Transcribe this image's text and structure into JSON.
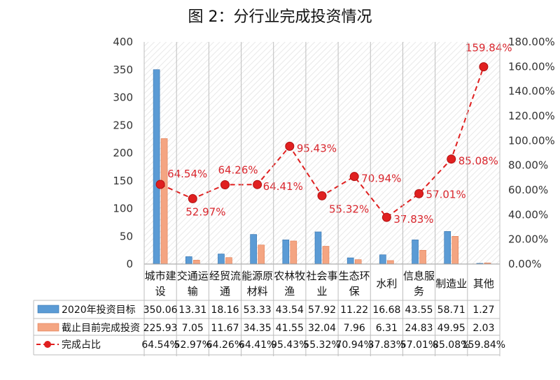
{
  "title": "图 2：分行业完成投资情况",
  "chart_data": {
    "type": "bar",
    "categories": [
      [
        "城市建",
        "设"
      ],
      [
        "交通运",
        "输"
      ],
      [
        "经贸流",
        "通"
      ],
      [
        "能源原",
        "材料"
      ],
      [
        "农林牧",
        "渔"
      ],
      [
        "社会事",
        "业"
      ],
      [
        "生态环",
        "保"
      ],
      [
        "水利"
      ],
      [
        "信息服",
        "务"
      ],
      [
        "制造业"
      ],
      [
        "其他"
      ]
    ],
    "series": [
      {
        "name": "2020年投资目标",
        "kind": "bar",
        "axis": "left",
        "color": "#5b9bd5",
        "values": [
          350.06,
          13.31,
          18.16,
          53.33,
          43.54,
          57.92,
          11.22,
          16.68,
          43.55,
          58.71,
          1.27
        ],
        "labels": [
          "350.06",
          "13.31",
          "18.16",
          "53.33",
          "43.54",
          "57.92",
          "11.22",
          "16.68",
          "43.55",
          "58.71",
          "1.27"
        ]
      },
      {
        "name": "截止目前完成投资",
        "kind": "bar",
        "axis": "left",
        "color": "#f4a582",
        "values": [
          225.93,
          7.05,
          11.67,
          34.35,
          41.55,
          32.04,
          7.96,
          6.31,
          24.83,
          49.95,
          2.03
        ],
        "labels": [
          "225.93",
          "7.05",
          "11.67",
          "34.35",
          "41.55",
          "32.04",
          "7.96",
          "6.31",
          "24.83",
          "49.95",
          "2.03"
        ]
      },
      {
        "name": "完成占比",
        "kind": "line",
        "axis": "right",
        "color": "#e02020",
        "values": [
          64.54,
          52.97,
          64.26,
          64.41,
          95.43,
          55.32,
          70.94,
          37.83,
          57.01,
          85.08,
          159.84
        ],
        "labels": [
          "64.54%",
          "52.97%",
          "64.26%",
          "64.41%",
          "95.43%",
          "55.32%",
          "70.94%",
          "37.83%",
          "57.01%",
          "85.08%",
          "159.84%"
        ]
      }
    ],
    "left_axis": {
      "min": 0,
      "max": 400,
      "ticks": [
        "0",
        "50",
        "100",
        "150",
        "200",
        "250",
        "300",
        "350",
        "400"
      ]
    },
    "right_axis": {
      "min": 0,
      "max": 180,
      "ticks": [
        "0.00%",
        "20.00%",
        "40.00%",
        "60.00%",
        "80.00%",
        "100.00%",
        "120.00%",
        "140.00%",
        "160.00%",
        "180.00%"
      ]
    },
    "legend": "data-table-below",
    "grid": false
  }
}
